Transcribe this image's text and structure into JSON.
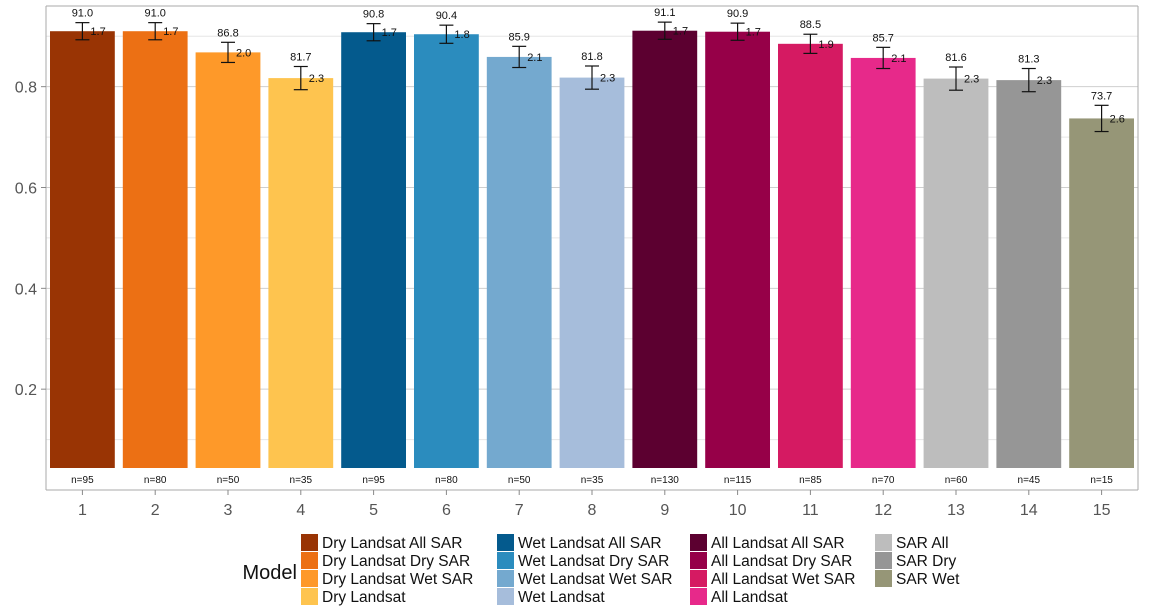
{
  "chart_data": {
    "type": "bar",
    "categories": [
      "1",
      "2",
      "3",
      "4",
      "5",
      "6",
      "7",
      "8",
      "9",
      "10",
      "11",
      "12",
      "13",
      "14",
      "15"
    ],
    "values": [
      0.91,
      0.91,
      0.868,
      0.817,
      0.908,
      0.904,
      0.859,
      0.818,
      0.911,
      0.909,
      0.885,
      0.857,
      0.816,
      0.813,
      0.737
    ],
    "value_labels": [
      "91.0",
      "91.0",
      "86.8",
      "81.7",
      "90.8",
      "90.4",
      "85.9",
      "81.8",
      "91.1",
      "90.9",
      "88.5",
      "85.7",
      "81.6",
      "81.3",
      "73.7"
    ],
    "errors": [
      0.017,
      0.017,
      0.02,
      0.023,
      0.017,
      0.018,
      0.021,
      0.023,
      0.017,
      0.017,
      0.019,
      0.021,
      0.023,
      0.023,
      0.026
    ],
    "error_labels": [
      "1.7",
      "1.7",
      "2.0",
      "2.3",
      "1.7",
      "1.8",
      "2.1",
      "2.3",
      "1.7",
      "1.7",
      "1.9",
      "2.1",
      "2.3",
      "2.3",
      "2.6"
    ],
    "n_labels": [
      "n=95",
      "n=80",
      "n=50",
      "n=35",
      "n=95",
      "n=80",
      "n=50",
      "n=35",
      "n=130",
      "n=115",
      "n=85",
      "n=70",
      "n=60",
      "n=45",
      "n=15"
    ],
    "colors": [
      "#993404",
      "#EC7014",
      "#FE9929",
      "#FEC44F",
      "#045A8D",
      "#2B8CBE",
      "#74A9CF",
      "#A6BDDB",
      "#5C0030",
      "#960048",
      "#D51A62",
      "#E7298A",
      "#BDBDBD",
      "#969696",
      "#969677"
    ],
    "yticks": [
      0.2,
      0.4,
      0.6,
      0.8
    ],
    "ytick_labels": [
      "0.2",
      "0.4",
      "0.6",
      "0.8"
    ],
    "ylim": [
      0,
      0.96
    ],
    "grid": true,
    "legend": {
      "title": "Model",
      "position": "bottom",
      "columns": [
        [
          "Dry Landsat All SAR",
          "Dry Landsat Dry SAR",
          "Dry Landsat Wet SAR",
          "Dry Landsat"
        ],
        [
          "Wet Landsat All SAR",
          "Wet Landsat Dry SAR",
          "Wet Landsat Wet SAR",
          "Wet Landsat"
        ],
        [
          "All Landsat All SAR",
          "All Landsat Dry SAR",
          "All Landsat Wet SAR",
          "All Landsat"
        ],
        [
          "SAR All",
          "SAR Dry",
          "SAR Wet"
        ]
      ],
      "colors": [
        [
          "#993404",
          "#EC7014",
          "#FE9929",
          "#FEC44F"
        ],
        [
          "#045A8D",
          "#2B8CBE",
          "#74A9CF",
          "#A6BDDB"
        ],
        [
          "#5C0030",
          "#960048",
          "#D51A62",
          "#E7298A"
        ],
        [
          "#BDBDBD",
          "#969696",
          "#969677"
        ]
      ]
    }
  }
}
